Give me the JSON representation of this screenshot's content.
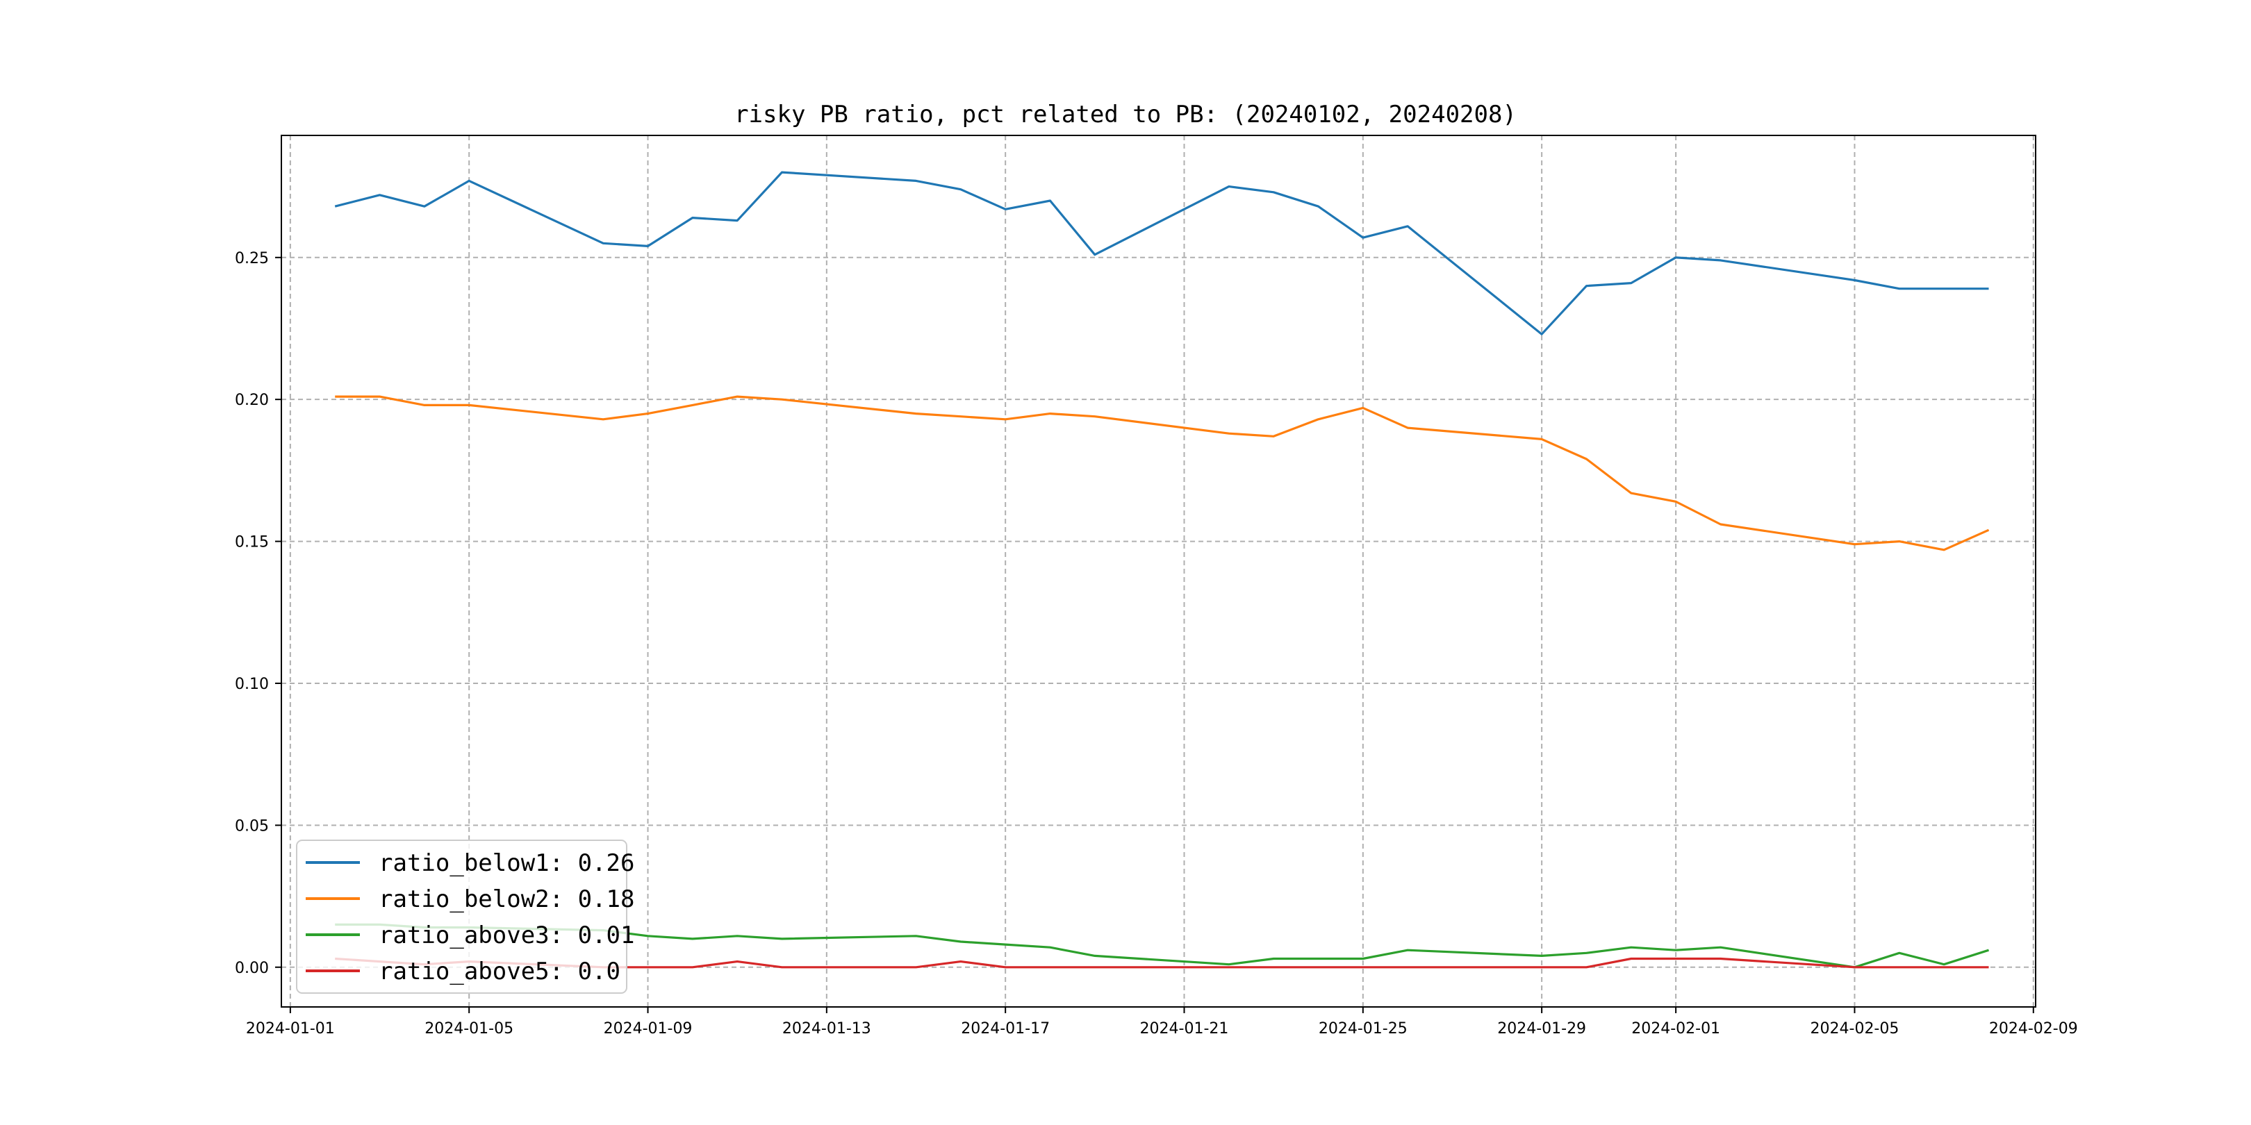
{
  "chart_data": {
    "type": "line",
    "title": "risky PB ratio, pct related to PB: (20240102, 20240208)",
    "xlabel": "",
    "ylabel": "",
    "x": [
      "2024-01-02",
      "2024-01-03",
      "2024-01-04",
      "2024-01-05",
      "2024-01-08",
      "2024-01-09",
      "2024-01-10",
      "2024-01-11",
      "2024-01-12",
      "2024-01-15",
      "2024-01-16",
      "2024-01-17",
      "2024-01-18",
      "2024-01-19",
      "2024-01-22",
      "2024-01-23",
      "2024-01-24",
      "2024-01-25",
      "2024-01-26",
      "2024-01-29",
      "2024-01-30",
      "2024-01-31",
      "2024-02-01",
      "2024-02-02",
      "2024-02-05",
      "2024-02-06",
      "2024-02-07",
      "2024-02-08"
    ],
    "xlim": [
      "2024-01-01",
      "2024-02-09"
    ],
    "xticks": [
      "2024-01-01",
      "2024-01-05",
      "2024-01-09",
      "2024-01-13",
      "2024-01-17",
      "2024-01-21",
      "2024-01-25",
      "2024-01-29",
      "2024-02-01",
      "2024-02-05",
      "2024-02-09"
    ],
    "ylim": [
      -0.014,
      0.293
    ],
    "yticks": [
      "0.00",
      "0.05",
      "0.10",
      "0.15",
      "0.20",
      "0.25"
    ],
    "grid": true,
    "legend_position": "lower-left",
    "series": [
      {
        "name": "ratio_below1: 0.26",
        "color": "#1f77b4",
        "values": [
          0.268,
          0.272,
          0.268,
          0.277,
          0.255,
          0.254,
          0.264,
          0.263,
          0.28,
          0.277,
          0.274,
          0.267,
          0.27,
          0.251,
          0.275,
          0.273,
          0.268,
          0.257,
          0.261,
          0.223,
          0.24,
          0.241,
          0.25,
          0.249,
          0.242,
          0.239,
          0.239,
          0.239
        ]
      },
      {
        "name": "ratio_below2: 0.18",
        "color": "#ff7f0e",
        "values": [
          0.201,
          0.201,
          0.198,
          0.198,
          0.193,
          0.195,
          0.198,
          0.201,
          0.2,
          0.195,
          0.194,
          0.193,
          0.195,
          0.194,
          0.188,
          0.187,
          0.193,
          0.197,
          0.19,
          0.186,
          0.179,
          0.167,
          0.164,
          0.156,
          0.149,
          0.15,
          0.147,
          0.154
        ]
      },
      {
        "name": "ratio_above3: 0.01",
        "color": "#2ca02c",
        "values": [
          0.015,
          0.015,
          0.014,
          0.014,
          0.013,
          0.011,
          0.01,
          0.011,
          0.01,
          0.011,
          0.009,
          0.008,
          0.007,
          0.004,
          0.001,
          0.003,
          0.003,
          0.003,
          0.006,
          0.004,
          0.005,
          0.007,
          0.006,
          0.007,
          0.0,
          0.005,
          0.001,
          0.006
        ]
      },
      {
        "name": "ratio_above5: 0.0",
        "color": "#d62728",
        "values": [
          0.003,
          0.002,
          0.001,
          0.002,
          0.0,
          0.0,
          0.0,
          0.002,
          0.0,
          0.0,
          0.002,
          0.0,
          0.0,
          0.0,
          0.0,
          0.0,
          0.0,
          0.0,
          0.0,
          0.0,
          0.0,
          0.003,
          0.003,
          0.003,
          0.0,
          0.0,
          0.0,
          0.0
        ]
      }
    ]
  }
}
